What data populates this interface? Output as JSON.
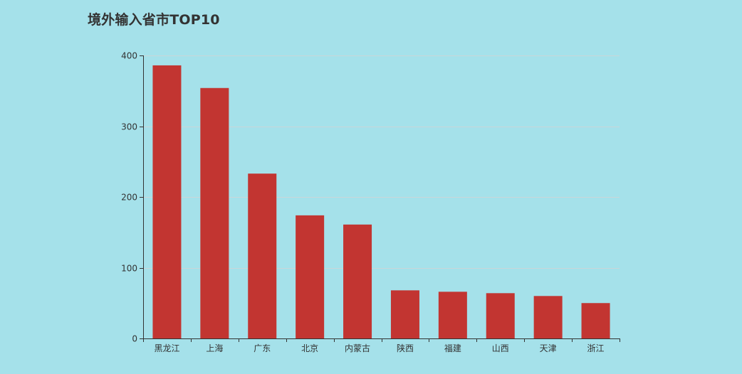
{
  "chart_data": {
    "type": "bar",
    "title": "境外输入省市TOP10",
    "categories": [
      "黑龙江",
      "上海",
      "广东",
      "北京",
      "内蒙古",
      "陕西",
      "福建",
      "山西",
      "天津",
      "浙江"
    ],
    "values": [
      386,
      354,
      233,
      174,
      161,
      68,
      66,
      64,
      60,
      50
    ],
    "xlabel": "",
    "ylabel": "",
    "ylim": [
      0,
      400
    ],
    "yticks": [
      "0",
      "100",
      "200",
      "300",
      "400"
    ],
    "grid": true,
    "legend": "none",
    "colors": {
      "bar": "#c23531",
      "background": "#a5e1ea",
      "axis": "#333333",
      "grid": "#c9d6d9",
      "text": "#333333"
    }
  }
}
